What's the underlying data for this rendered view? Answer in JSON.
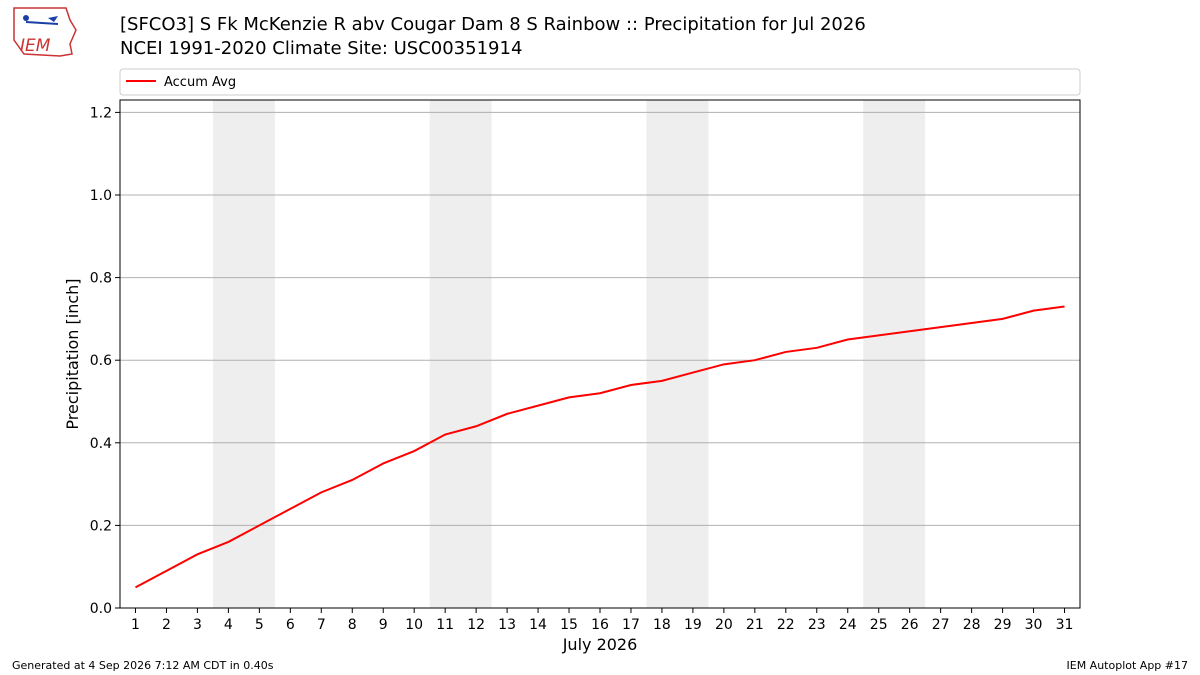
{
  "logo_text": "IEM",
  "footer_left": "Generated at 4 Sep 2026 7:12 AM CDT in 0.40s",
  "footer_right": "IEM Autoplot App #17",
  "chart_data": {
    "type": "line",
    "title": "[SFCO3] S Fk McKenzie R abv Cougar Dam 8 S Rainbow :: Precipitation for Jul 2026",
    "subtitle": "NCEI 1991-2020 Climate Site: USC00351914",
    "xlabel": "July 2026",
    "ylabel": "Precipitation [inch]",
    "x": [
      1,
      2,
      3,
      4,
      5,
      6,
      7,
      8,
      9,
      10,
      11,
      12,
      13,
      14,
      15,
      16,
      17,
      18,
      19,
      20,
      21,
      22,
      23,
      24,
      25,
      26,
      27,
      28,
      29,
      30,
      31
    ],
    "series": [
      {
        "name": "Accum Avg",
        "color": "#ff0000",
        "values": [
          0.05,
          0.09,
          0.13,
          0.16,
          0.2,
          0.24,
          0.28,
          0.31,
          0.35,
          0.38,
          0.42,
          0.44,
          0.47,
          0.49,
          0.51,
          0.52,
          0.54,
          0.55,
          0.57,
          0.59,
          0.6,
          0.62,
          0.63,
          0.65,
          0.66,
          0.67,
          0.68,
          0.69,
          0.7,
          0.72,
          0.73
        ]
      }
    ],
    "xlim": [
      0.5,
      31.5
    ],
    "xticks": [
      1,
      2,
      3,
      4,
      5,
      6,
      7,
      8,
      9,
      10,
      11,
      12,
      13,
      14,
      15,
      16,
      17,
      18,
      19,
      20,
      21,
      22,
      23,
      24,
      25,
      26,
      27,
      28,
      29,
      30,
      31
    ],
    "ylim": [
      0,
      1.23
    ],
    "yticks": [
      {
        "value": 0,
        "label": "0.0"
      },
      0.2,
      0.4,
      0.6,
      0.8,
      {
        "value": 1,
        "label": "1.0"
      },
      1.2
    ],
    "grid": true,
    "shaded_spans": [
      [
        3.5,
        5.5
      ],
      [
        10.5,
        12.5
      ],
      [
        17.5,
        19.5
      ],
      [
        24.5,
        26.5
      ]
    ],
    "shade_color": "#eeeeee",
    "legend": "top"
  }
}
